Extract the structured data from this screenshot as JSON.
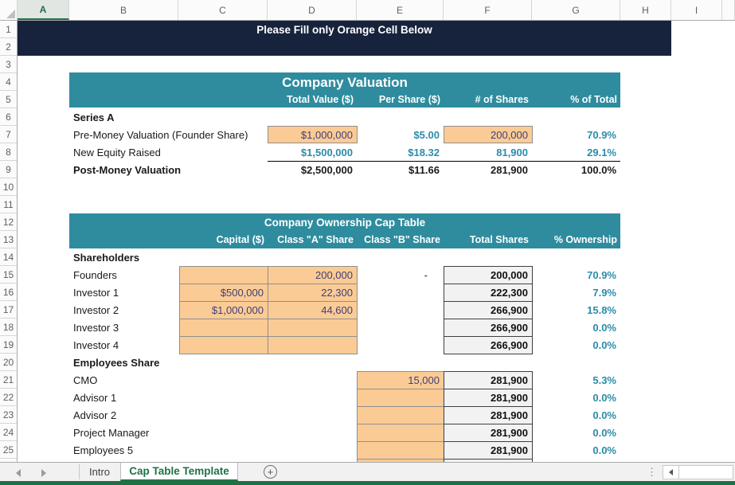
{
  "banner": {
    "text": "Please Fill only Orange Cell Below"
  },
  "columns": [
    "A",
    "B",
    "C",
    "D",
    "E",
    "F",
    "G",
    "H",
    "I"
  ],
  "row_numbers": [
    "1",
    "2",
    "3",
    "4",
    "5",
    "6",
    "7",
    "8",
    "9",
    "10",
    "11",
    "12",
    "13",
    "14",
    "15",
    "16",
    "17",
    "18",
    "19",
    "20",
    "21",
    "22",
    "23",
    "24",
    "25"
  ],
  "valuation": {
    "title": "Company Valuation",
    "headers": [
      "Total Value ($)",
      "Per Share ($)",
      "# of Shares",
      "% of Total"
    ],
    "section_label": "Series A",
    "rows": [
      {
        "label": "Pre-Money Valuation (Founder Share)",
        "total_value": "$1,000,000",
        "per_share": "$5.00",
        "shares": "200,000",
        "pct": "70.9%"
      },
      {
        "label": "New Equity Raised",
        "total_value": "$1,500,000",
        "per_share": "$18.32",
        "shares": "81,900",
        "pct": "29.1%"
      },
      {
        "label": "Post-Money Valuation",
        "total_value": "$2,500,000",
        "per_share": "$11.66",
        "shares": "281,900",
        "pct": "100.0%"
      }
    ]
  },
  "cap_table": {
    "title": "Company Ownership Cap Table",
    "headers": [
      "Capital ($)",
      "Class \"A\" Share",
      "Class \"B\" Share",
      "Total Shares",
      "% Ownership"
    ],
    "shareholders_label": "Shareholders",
    "shareholders": [
      {
        "label": "Founders",
        "capital": "",
        "class_a": "200,000",
        "class_b": "-",
        "total": "200,000",
        "pct": "70.9%"
      },
      {
        "label": "Investor 1",
        "capital": "$500,000",
        "class_a": "22,300",
        "class_b": "",
        "total": "222,300",
        "pct": "7.9%"
      },
      {
        "label": "Investor 2",
        "capital": "$1,000,000",
        "class_a": "44,600",
        "class_b": "",
        "total": "266,900",
        "pct": "15.8%"
      },
      {
        "label": "Investor 3",
        "capital": "",
        "class_a": "",
        "class_b": "",
        "total": "266,900",
        "pct": "0.0%"
      },
      {
        "label": "Investor 4",
        "capital": "",
        "class_a": "",
        "class_b": "",
        "total": "266,900",
        "pct": "0.0%"
      }
    ],
    "employees_label": "Employees Share",
    "employees": [
      {
        "label": "CMO",
        "class_b": "15,000",
        "total": "281,900",
        "pct": "5.3%"
      },
      {
        "label": "Advisor 1",
        "class_b": "",
        "total": "281,900",
        "pct": "0.0%"
      },
      {
        "label": "Advisor 2",
        "class_b": "",
        "total": "281,900",
        "pct": "0.0%"
      },
      {
        "label": "Project Manager",
        "class_b": "",
        "total": "281,900",
        "pct": "0.0%"
      },
      {
        "label": "Employees 5",
        "class_b": "",
        "total": "281,900",
        "pct": "0.0%"
      }
    ]
  },
  "sheet_tabs": {
    "tabs": [
      {
        "label": "Intro",
        "active": false
      },
      {
        "label": "Cap Table Template",
        "active": true
      }
    ],
    "add_label": "+",
    "options_glyph": "⋮"
  },
  "colors": {
    "banner_navy": "#17233C",
    "header_teal": "#2E8C9E",
    "value_teal": "#2B8CA9",
    "input_orange": "#FBCB95",
    "input_text": "#3F3F76",
    "output_gray": "#F2F2F2",
    "excel_green": "#1E7145"
  }
}
